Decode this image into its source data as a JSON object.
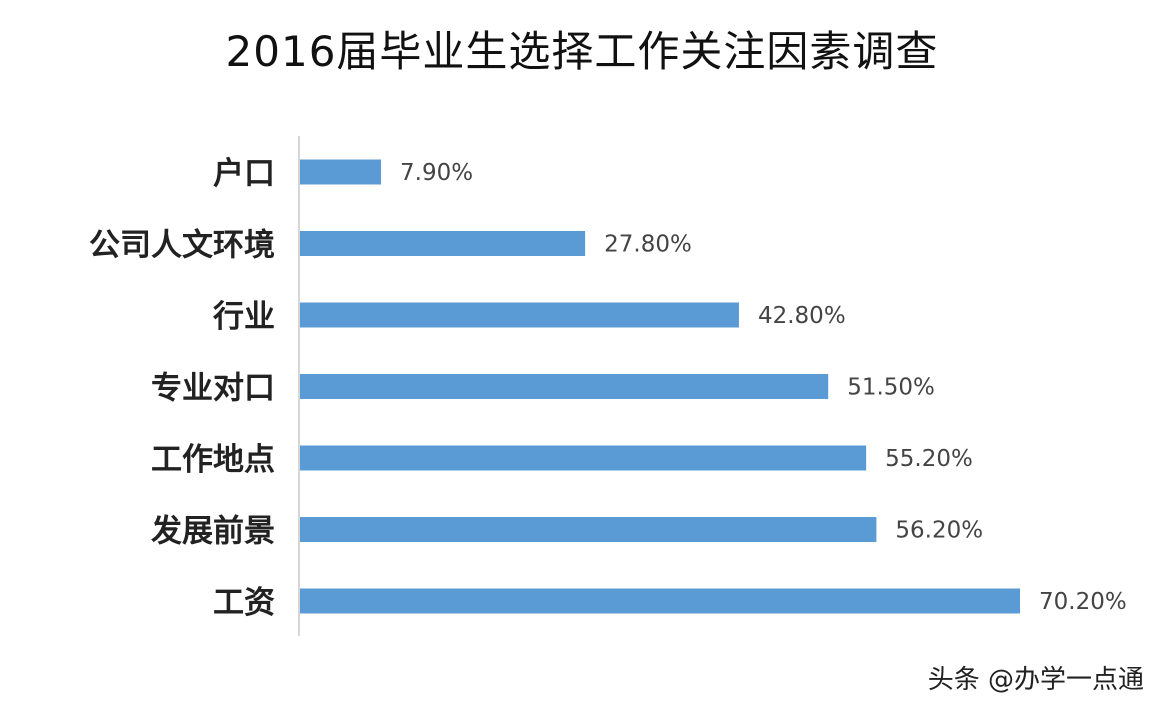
{
  "chart_data": {
    "type": "bar",
    "orientation": "horizontal",
    "title": "2016届毕业生选择工作关注因素调查",
    "categories": [
      "户口",
      "公司人文环境",
      "行业",
      "专业对口",
      "工作地点",
      "发展前景",
      "工资"
    ],
    "values": [
      7.9,
      27.8,
      42.8,
      51.5,
      55.2,
      56.2,
      70.2
    ],
    "value_labels": [
      "7.90%",
      "27.80%",
      "42.80%",
      "51.50%",
      "55.20%",
      "56.20%",
      "70.20%"
    ],
    "xlim": [
      0,
      70.2
    ],
    "grid": false,
    "legend": "none",
    "bar_color": "#5b9bd5"
  },
  "watermark": "头条 @办学一点通"
}
